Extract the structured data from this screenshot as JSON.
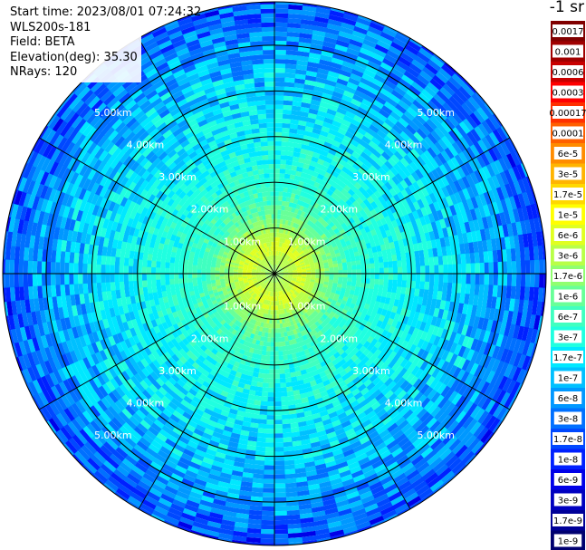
{
  "header": {
    "start_time": "Start time: 2023/08/01 07:24:32",
    "instrument": "WLS200s-181",
    "field": "Field: BETA",
    "elevation": "Elevation(deg): 35.30",
    "nrays": "NRays: 120"
  },
  "colorbar": {
    "unit_label": "-1 sr",
    "labels": [
      "0.0017",
      "0.001",
      "0.0006",
      "0.0003",
      "0.00017",
      "0.0001",
      "6e-5",
      "3e-5",
      "1.7e-5",
      "1e-5",
      "6e-6",
      "3e-6",
      "1.7e-6",
      "1e-6",
      "6e-7",
      "3e-7",
      "1.7e-7",
      "1e-7",
      "6e-8",
      "3e-8",
      "1.7e-8",
      "1e-8",
      "6e-9",
      "3e-9",
      "1.7e-9",
      "1e-9"
    ]
  },
  "chart_data": {
    "type": "heatmap",
    "subtype": "PPI polar scan",
    "field": "BETA",
    "elevation_deg": 35.3,
    "n_rays": 120,
    "max_range_km": 5.95,
    "range_rings_km": [
      1,
      2,
      3,
      4,
      5
    ],
    "radial_lines_deg": [
      0,
      30,
      60,
      90,
      120,
      150,
      180,
      210,
      240,
      270,
      300,
      330
    ],
    "ring_labels": [
      "1.00km",
      "2.00km",
      "3.00km",
      "4.00km",
      "5.00km"
    ],
    "color_scale": "log, jet-like",
    "value_range": [
      1e-09,
      0.0017
    ],
    "radial_profile": [
      {
        "range_km": 0.0,
        "value": 2e-06
      },
      {
        "range_km": 0.6,
        "value": 8e-06
      },
      {
        "range_km": 1.0,
        "value": 2.5e-06
      },
      {
        "range_km": 1.5,
        "value": 8e-07
      },
      {
        "range_km": 2.0,
        "value": 5e-07
      },
      {
        "range_km": 3.0,
        "value": 3e-07
      },
      {
        "range_km": 4.0,
        "value": 1.7e-07
      },
      {
        "range_km": 5.0,
        "value": 8e-08
      },
      {
        "range_km": 5.8,
        "value": 3e-08
      }
    ],
    "colors": {
      "ring": "#000000",
      "ring_label": "#ffffff"
    }
  }
}
